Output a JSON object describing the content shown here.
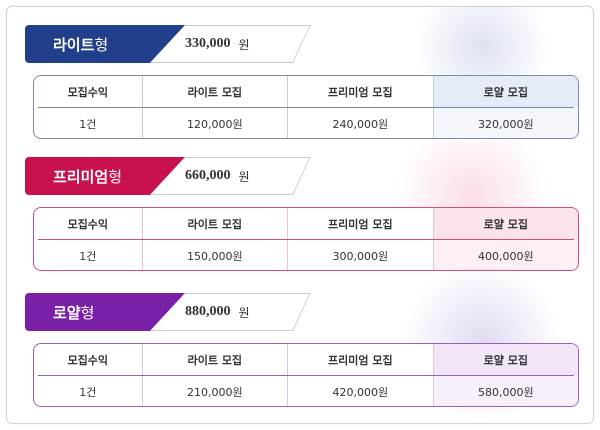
{
  "accent_colors": {
    "lite": "#223f8c",
    "premium": "#c8124e",
    "royal": "#7a1fa8"
  },
  "plans": [
    {
      "key": "lite",
      "name_bold": "라이트",
      "name_suffix": "형",
      "price": "330,000",
      "unit": "원",
      "table": {
        "headers": [
          "모집수익",
          "라이트 모집",
          "프리미엄 모집",
          "로얄 모집"
        ],
        "row": [
          "1건",
          "120,000원",
          "240,000원",
          "320,000원"
        ]
      }
    },
    {
      "key": "premium",
      "name_bold": "프리미엄",
      "name_suffix": "형",
      "price": "660,000",
      "unit": "원",
      "table": {
        "headers": [
          "모집수익",
          "라이트 모집",
          "프리미엄 모집",
          "로얄 모집"
        ],
        "row": [
          "1건",
          "150,000원",
          "300,000원",
          "400,000원"
        ]
      }
    },
    {
      "key": "royal",
      "name_bold": "로얄",
      "name_suffix": "형",
      "price": "880,000",
      "unit": "원",
      "table": {
        "headers": [
          "모집수익",
          "라이트 모집",
          "프리미엄 모집",
          "로얄 모집"
        ],
        "row": [
          "1건",
          "210,000원",
          "420,000원",
          "580,000원"
        ]
      }
    }
  ]
}
